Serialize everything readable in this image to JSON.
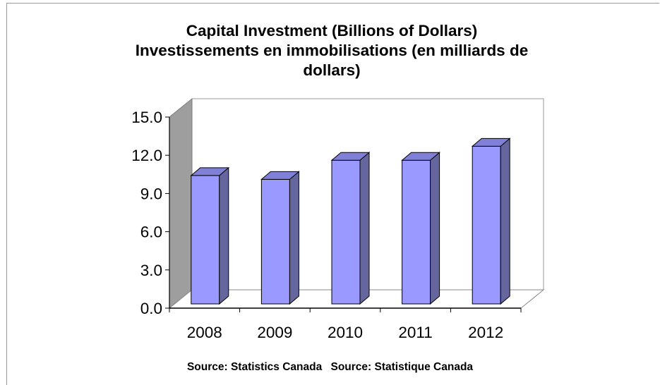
{
  "chart_data": {
    "type": "bar",
    "title_lines": [
      "Capital Investment (Billions of Dollars)",
      "Investissements en immobilisations (en milliards de",
      "dollars)"
    ],
    "categories": [
      "2008",
      "2009",
      "2010",
      "2011",
      "2012"
    ],
    "values": [
      10.3,
      10.0,
      11.5,
      11.5,
      12.6
    ],
    "y_ticks": [
      "0.0",
      "3.0",
      "6.0",
      "9.0",
      "12.0",
      "15.0"
    ],
    "ylim": [
      0,
      15
    ],
    "xlabel": "",
    "ylabel": "",
    "grid": false,
    "legend": "none",
    "colors": {
      "bar_front": "#9999ff",
      "bar_side": "#66669e",
      "wall": "#9e9e9e"
    }
  },
  "sources": [
    "Source: Statistics Canada",
    "Source: Statistique Canada"
  ]
}
